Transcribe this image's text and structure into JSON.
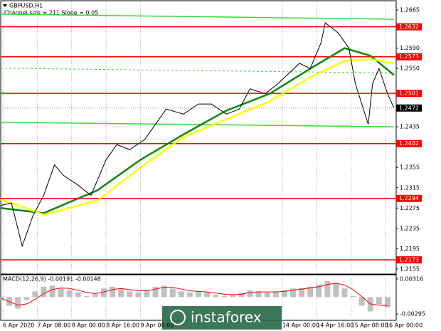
{
  "chart_data": [
    {
      "type": "line",
      "title": "GBPUSD,H1",
      "subtitle": "Channel size = 211 Slope = 0.05",
      "x": [
        0,
        5,
        10,
        15,
        20,
        25,
        29,
        36,
        42,
        49,
        54,
        60,
        67,
        72,
        77,
        85,
        92,
        98,
        105,
        111,
        116,
        123,
        129,
        134,
        139,
        144,
        149,
        151,
        157,
        162,
        165,
        168,
        171,
        173,
        176,
        180,
        183
      ],
      "values": [
        1.228,
        1.2285,
        1.22,
        1.226,
        1.23,
        1.236,
        1.234,
        1.232,
        1.23,
        1.237,
        1.24,
        1.239,
        1.241,
        1.244,
        1.247,
        1.246,
        1.248,
        1.248,
        1.246,
        1.247,
        1.251,
        1.25,
        1.252,
        1.254,
        1.256,
        1.255,
        1.26,
        1.264,
        1.262,
        1.259,
        1.252,
        1.248,
        1.244,
        1.252,
        1.255,
        1.25,
        1.2472
      ],
      "color": "#000000",
      "moving_averages": [
        {
          "x": [
            0,
            20,
            45,
            65,
            85,
            105,
            125,
            145,
            160,
            172,
            183
          ],
          "values": [
            1.2275,
            1.2265,
            1.231,
            1.237,
            1.242,
            1.2467,
            1.25,
            1.2552,
            1.259,
            1.2575,
            1.2537
          ],
          "color": "#0a8a0a"
        },
        {
          "x": [
            0,
            20,
            45,
            65,
            85,
            105,
            125,
            145,
            160,
            172,
            183
          ],
          "values": [
            1.2292,
            1.2262,
            1.229,
            1.2355,
            1.2415,
            1.245,
            1.2485,
            1.2535,
            1.2565,
            1.2568,
            1.256
          ],
          "color": "#ffff00"
        }
      ],
      "channel": {
        "x": [
          0,
          183
        ],
        "upper": [
          1.2657,
          1.2647
        ],
        "lower": [
          1.2444,
          1.2435
        ],
        "color": "#33dd33"
      },
      "levels": {
        "values": [
          1.2632,
          1.2573,
          1.2501,
          1.2402,
          1.2294,
          1.2173
        ],
        "color": "#ff0000"
      },
      "last_price": 1.2472,
      "xlim": [
        0,
        184
      ],
      "ylim": [
        1.2145,
        1.2682
      ],
      "yticks": [
        1.2665,
        {
          "value": 1.259,
          "label": "1.2590"
        },
        {
          "value": 1.255,
          "label": "1.2550"
        },
        1.2435,
        1.2355,
        1.2315,
        1.2275,
        1.2235,
        1.2195,
        1.2155
      ],
      "xticks": [
        {
          "value": 1,
          "label": "6 Apr 2020"
        },
        {
          "value": 17,
          "label": "7 Apr 08:00"
        },
        {
          "value": 33,
          "label": "8 Apr 00:00"
        },
        {
          "value": 49,
          "label": "8 Apr 16:00"
        },
        {
          "value": 65,
          "label": "9 Apr 08:00"
        },
        {
          "value": 131,
          "label": "14 Apr 00:00"
        },
        {
          "value": 147,
          "label": "14 Apr 16:00"
        },
        {
          "value": 163,
          "label": "15 Apr 08:00"
        },
        {
          "value": 179,
          "label": "16 Apr 00:00"
        }
      ],
      "grid": true
    },
    {
      "type": "bar",
      "title": "MACD(12,26,9) -0.00191 -0.00148",
      "x": [
        0,
        4,
        8,
        12,
        16,
        20,
        24,
        28,
        32,
        36,
        40,
        44,
        48,
        52,
        56,
        60,
        64,
        68,
        72,
        76,
        80,
        84,
        88,
        92,
        96,
        100,
        104,
        108,
        112,
        116,
        120,
        124,
        128,
        132,
        136,
        140,
        144,
        148,
        152,
        156,
        160,
        164,
        168,
        172,
        176,
        180
      ],
      "values": [
        -0.0005,
        -0.0015,
        -0.002,
        -0.0005,
        0.001,
        0.0018,
        0.002,
        0.0015,
        0.0012,
        0.0008,
        0.0002,
        0.0005,
        0.0015,
        0.0018,
        0.0015,
        0.001,
        0.0008,
        0.0012,
        0.0018,
        0.002,
        0.0015,
        0.001,
        0.0008,
        0.001,
        0.0008,
        0.0004,
        0.0002,
        0.0003,
        0.0008,
        0.0012,
        0.001,
        0.0008,
        0.001,
        0.0012,
        0.0015,
        0.0016,
        0.0018,
        0.0022,
        0.0028,
        0.0025,
        0.0015,
        0.0002,
        -0.0015,
        -0.0025,
        -0.0012,
        -0.0018
      ],
      "color": "#c0c0c0",
      "signal": {
        "values": [
          -0.0002,
          -0.0008,
          -0.0014,
          -0.0012,
          -0.0004,
          0.0006,
          0.0013,
          0.0016,
          0.0015,
          0.0012,
          0.0008,
          0.0006,
          0.0009,
          0.0013,
          0.0015,
          0.0013,
          0.0011,
          0.0011,
          0.0014,
          0.0017,
          0.0017,
          0.0014,
          0.0011,
          0.001,
          0.0009,
          0.0007,
          0.0005,
          0.0004,
          0.0005,
          0.0008,
          0.0009,
          0.0009,
          0.0009,
          0.001,
          0.0012,
          0.0014,
          0.0016,
          0.0018,
          0.0022,
          0.0024,
          0.0021,
          0.0013,
          0.0001,
          -0.0012,
          -0.0014,
          -0.0015
        ],
        "color": "#ff0000"
      },
      "xlim": [
        0,
        184
      ],
      "ylim": [
        -0.00405,
        0.00389
      ],
      "yticks": [
        0.00316,
        -0.00295
      ]
    }
  ],
  "watermark": "instaforex"
}
